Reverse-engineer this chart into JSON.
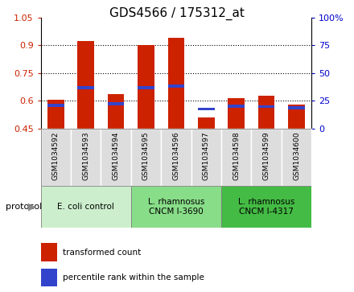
{
  "title": "GDS4566 / 175312_at",
  "samples": [
    "GSM1034592",
    "GSM1034593",
    "GSM1034594",
    "GSM1034595",
    "GSM1034596",
    "GSM1034597",
    "GSM1034598",
    "GSM1034599",
    "GSM1034600"
  ],
  "transformed_count": [
    0.605,
    0.925,
    0.635,
    0.9,
    0.94,
    0.51,
    0.615,
    0.625,
    0.578
  ],
  "percentile_rank": [
    0.575,
    0.67,
    0.585,
    0.67,
    0.68,
    0.555,
    0.57,
    0.568,
    0.563
  ],
  "baseline": 0.45,
  "ylim_left": [
    0.45,
    1.05
  ],
  "yticks_left": [
    0.45,
    0.6,
    0.75,
    0.9,
    1.05
  ],
  "ytick_labels_left": [
    "0.45",
    "0.6",
    "0.75",
    "0.9",
    "1.05"
  ],
  "ylim_right": [
    0,
    100
  ],
  "yticks_right": [
    0,
    25,
    50,
    75,
    100
  ],
  "ytick_labels_right": [
    "0",
    "25",
    "50",
    "75",
    "100%"
  ],
  "bar_color": "#cc2200",
  "blue_color": "#3344cc",
  "bar_width": 0.55,
  "group_colors": [
    "#cceecc",
    "#88dd88",
    "#44bb44"
  ],
  "group_labels": [
    "E. coli control",
    "L. rhamnosus\nCNCM I-3690",
    "L. rhamnosus\nCNCM I-4317"
  ],
  "group_ranges": [
    [
      0,
      3
    ],
    [
      3,
      6
    ],
    [
      6,
      9
    ]
  ],
  "sample_box_color": "#dddddd",
  "grid_yticks": [
    0.6,
    0.75,
    0.9
  ],
  "tick_color_left": "#cc2200",
  "tick_color_right": "#0000cc",
  "title_fontsize": 11,
  "tick_fontsize": 8,
  "sample_fontsize": 6.5,
  "group_fontsize": 7.5,
  "legend_fontsize": 7.5,
  "protocol_fontsize": 8
}
